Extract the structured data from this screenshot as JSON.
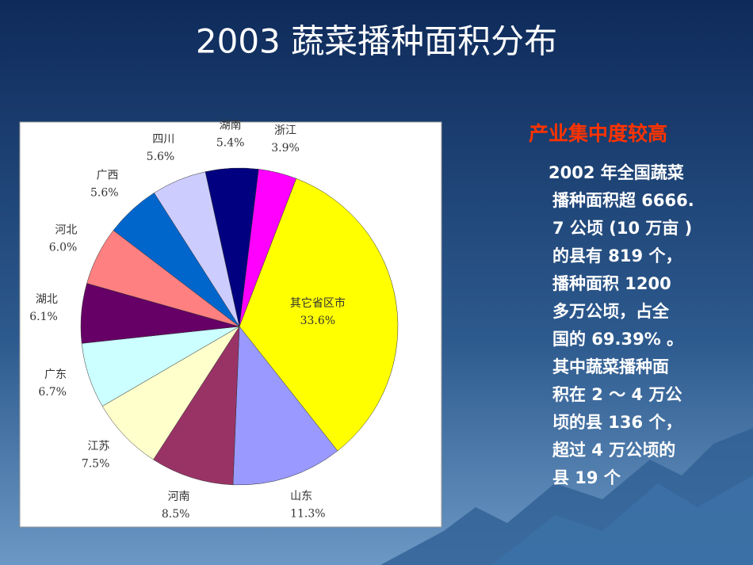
{
  "chart_data": {
    "type": "pie",
    "title": "2003 蔬菜播种面积分布",
    "categories": [
      "其它省区市",
      "山东",
      "河南",
      "江苏",
      "广东",
      "湖北",
      "河北",
      "广西",
      "四川",
      "湖南",
      "浙江"
    ],
    "values": [
      33.6,
      11.3,
      8.5,
      7.5,
      6.7,
      6.1,
      6.0,
      5.6,
      5.6,
      5.4,
      3.9
    ],
    "value_labels": [
      "33.6%",
      "11.3%",
      "8.5%",
      "7.5%",
      "6.7%",
      "6.1%",
      "6.0%",
      "5.6%",
      "5.6%",
      "5.4%",
      "3.9%"
    ],
    "colors": [
      "#ffff00",
      "#9999ff",
      "#993366",
      "#ffffcc",
      "#ccffff",
      "#660066",
      "#ff8080",
      "#0066cc",
      "#ccccff",
      "#000080",
      "#ff00ff"
    ]
  },
  "sidebar": {
    "heading": "产业集中度较高",
    "lines": [
      "2002 年全国蔬菜",
      "播种面积超 6666.",
      "7 公顷 (10 万亩 )",
      "的县有 819 个，",
      "播种面积 1200",
      "多万公顷，占全",
      "国的 69.39% 。",
      "其中蔬菜播种面",
      "积在 2 ～ 4 万公",
      "顷的县 136 个，",
      "超过 4 万公顷的",
      "县 19 个"
    ]
  }
}
